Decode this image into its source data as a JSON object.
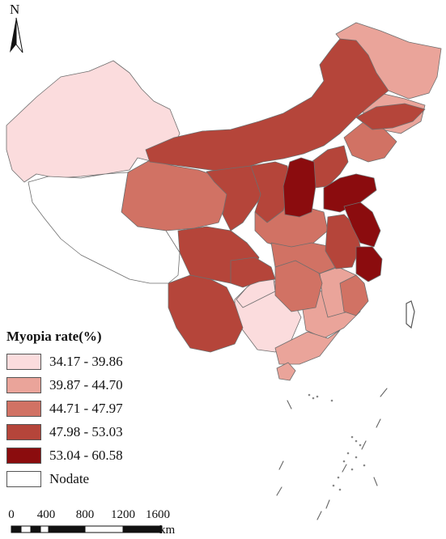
{
  "north_arrow": {
    "label": "N"
  },
  "legend": {
    "title": "Myopia rate(%)",
    "items": [
      {
        "label": "34.17 - 39.86",
        "color": "#fbdcdd"
      },
      {
        "label": "39.87 - 44.70",
        "color": "#eaa49a"
      },
      {
        "label": "44.71 - 47.97",
        "color": "#d17264"
      },
      {
        "label": "47.98 - 53.03",
        "color": "#b5453a"
      },
      {
        "label": "53.04 - 60.58",
        "color": "#8b0c0e"
      },
      {
        "label": "Nodate",
        "color": "#ffffff"
      }
    ]
  },
  "scale_bar": {
    "ticks": [
      "0",
      "400",
      "800",
      "1200",
      "1600"
    ],
    "unit": "km"
  }
}
